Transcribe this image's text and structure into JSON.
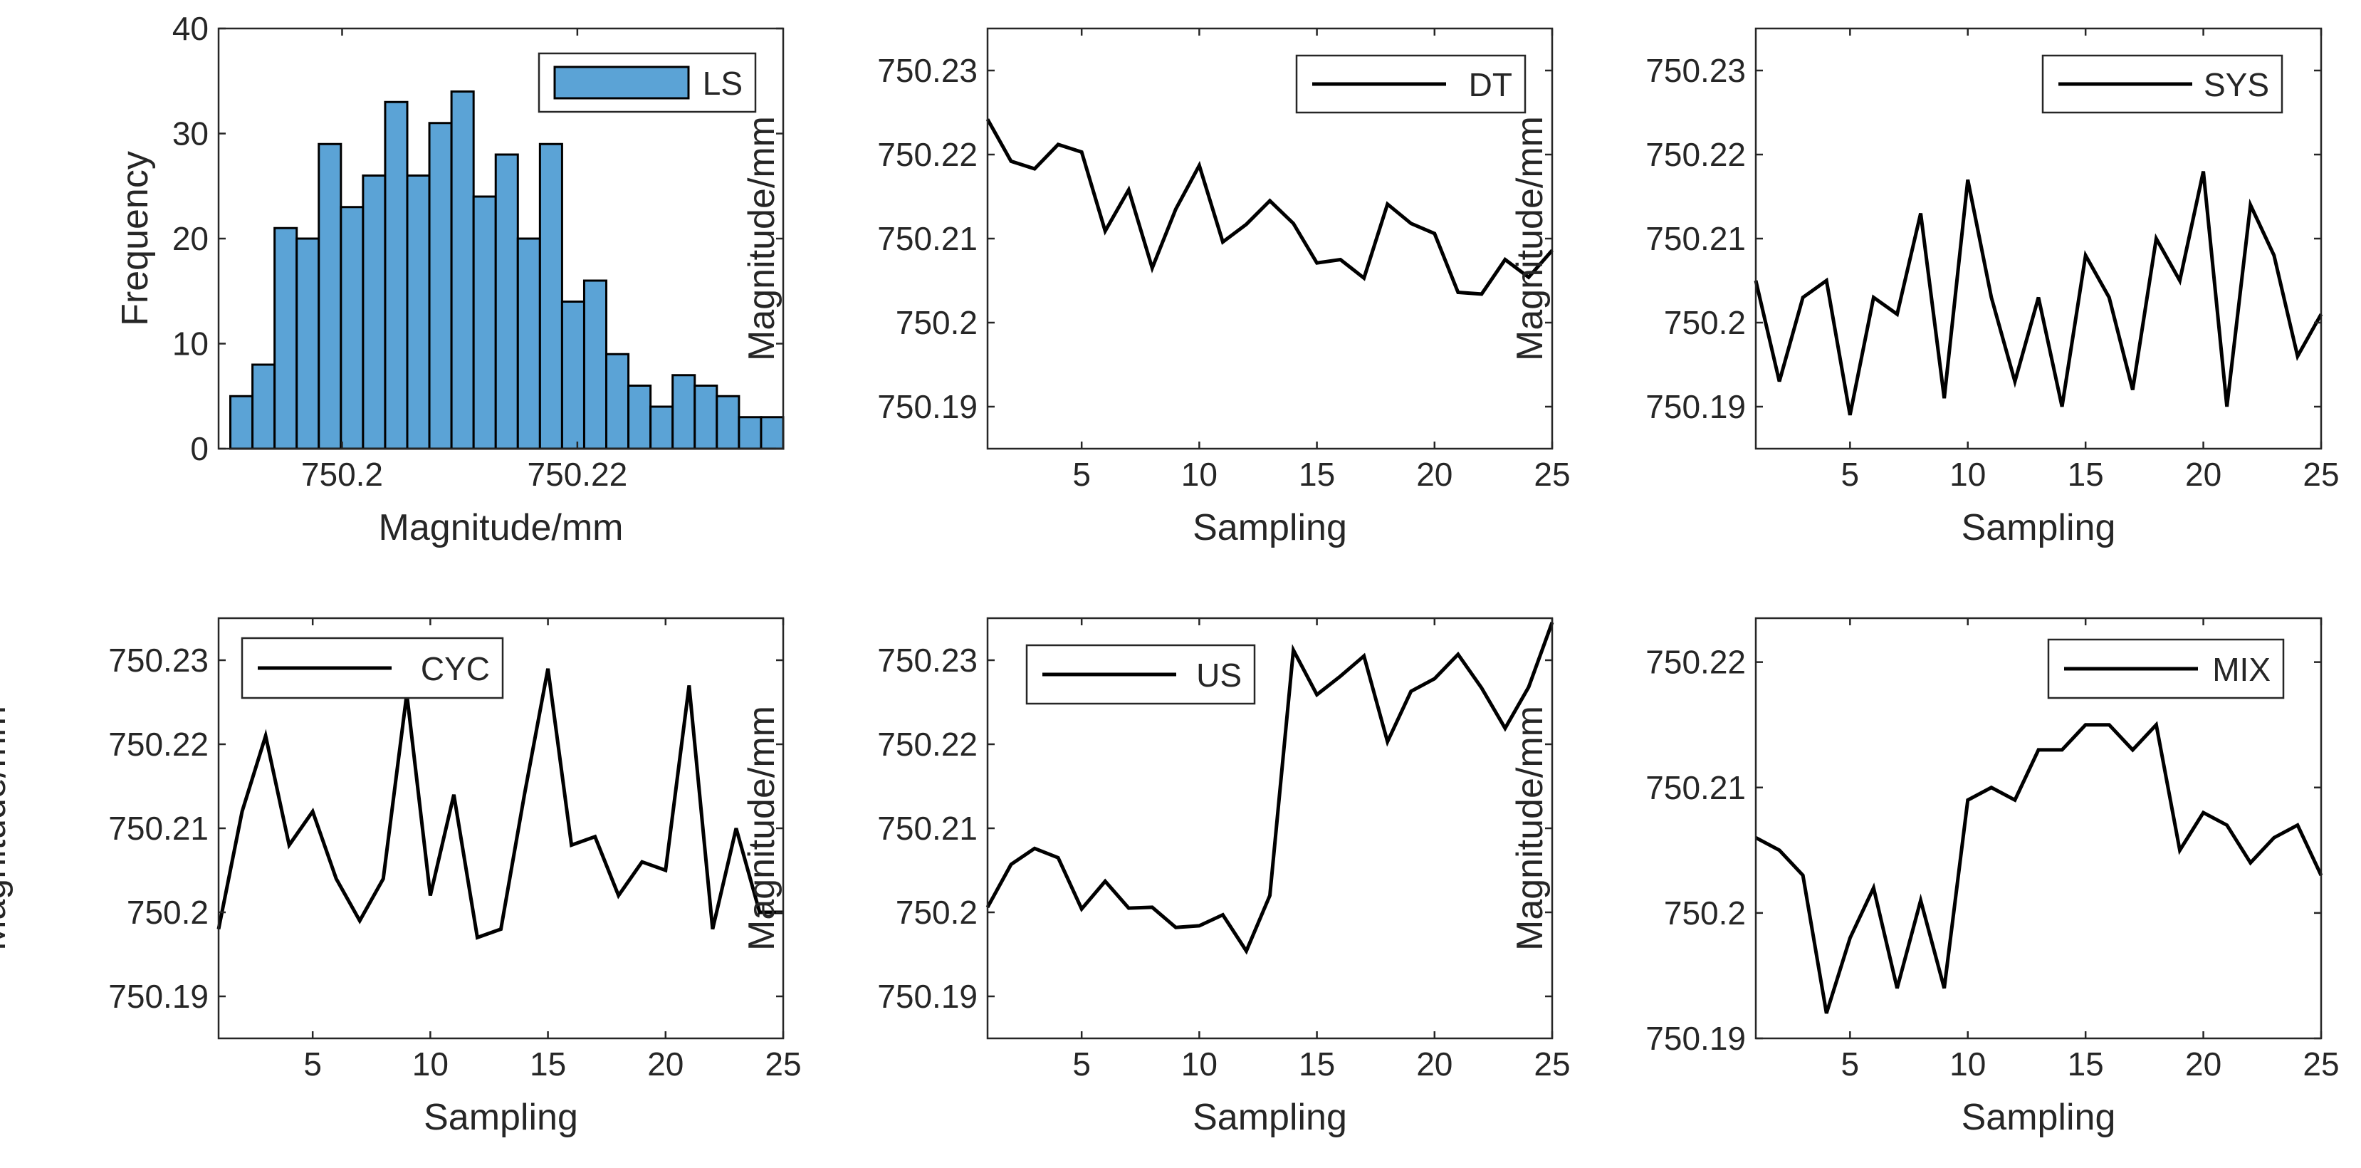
{
  "colors": {
    "bar_fill": "#5ba3d6",
    "line": "#000000",
    "axis": "#262626"
  },
  "chart_data": [
    {
      "id": "ls",
      "type": "bar",
      "legend": "LS",
      "xlabel": "Magnitude/mm",
      "ylabel": "Frequency",
      "bin_start": 750.1905,
      "bin_width": 0.00188,
      "values": [
        5,
        8,
        21,
        20,
        29,
        23,
        26,
        33,
        26,
        31,
        34,
        24,
        28,
        20,
        29,
        14,
        16,
        9,
        6,
        4,
        7,
        6,
        5,
        3,
        3
      ],
      "xlim": [
        750.1895,
        750.2375
      ],
      "ylim": [
        0,
        40
      ],
      "xticks": [
        750.2,
        750.22
      ],
      "xtick_labels": [
        "750.2",
        "750.22"
      ],
      "yticks": [
        0,
        10,
        20,
        30,
        40
      ],
      "ytick_labels": [
        "0",
        "10",
        "20",
        "30",
        "40"
      ]
    },
    {
      "id": "dt",
      "type": "line",
      "legend": "DT",
      "xlabel": "Sampling",
      "ylabel": "Magnitude/mm",
      "x": [
        1,
        2,
        3,
        4,
        5,
        6,
        7,
        8,
        9,
        10,
        11,
        12,
        13,
        14,
        15,
        16,
        17,
        18,
        19,
        20,
        21,
        22,
        23,
        24,
        25
      ],
      "values": [
        750.2242,
        750.2192,
        750.2183,
        750.2212,
        750.2203,
        750.2109,
        750.2158,
        750.2065,
        750.2135,
        750.2187,
        750.2096,
        750.2117,
        750.2145,
        750.2118,
        750.2071,
        750.2075,
        750.2053,
        750.2141,
        750.2118,
        750.2106,
        750.2036,
        750.2034,
        750.2075,
        750.2054,
        750.2086
      ],
      "xlim": [
        1,
        25
      ],
      "ylim": [
        750.185,
        750.235
      ],
      "xticks": [
        5,
        10,
        15,
        20,
        25
      ],
      "xtick_labels": [
        "5",
        "10",
        "15",
        "20",
        "25"
      ],
      "yticks": [
        750.19,
        750.2,
        750.21,
        750.22,
        750.23
      ],
      "ytick_labels": [
        "750.19",
        "750.2",
        "750.21",
        "750.22",
        "750.23"
      ]
    },
    {
      "id": "sys",
      "type": "line",
      "legend": "SYS",
      "xlabel": "Sampling",
      "ylabel": "Magnitude/mm",
      "x": [
        1,
        2,
        3,
        4,
        5,
        6,
        7,
        8,
        9,
        10,
        11,
        12,
        13,
        14,
        15,
        16,
        17,
        18,
        19,
        20,
        21,
        22,
        23,
        24,
        25
      ],
      "values": [
        750.205,
        750.193,
        750.203,
        750.205,
        750.189,
        750.203,
        750.201,
        750.213,
        750.191,
        750.217,
        750.203,
        750.193,
        750.203,
        750.19,
        750.208,
        750.203,
        750.192,
        750.21,
        750.205,
        750.218,
        750.19,
        750.214,
        750.208,
        750.196,
        750.201
      ],
      "xlim": [
        1,
        25
      ],
      "ylim": [
        750.185,
        750.235
      ],
      "xticks": [
        5,
        10,
        15,
        20,
        25
      ],
      "xtick_labels": [
        "5",
        "10",
        "15",
        "20",
        "25"
      ],
      "yticks": [
        750.19,
        750.2,
        750.21,
        750.22,
        750.23
      ],
      "ytick_labels": [
        "750.19",
        "750.2",
        "750.21",
        "750.22",
        "750.23"
      ]
    },
    {
      "id": "cyc",
      "type": "line",
      "legend": "CYC",
      "xlabel": "Sampling",
      "ylabel": "Magnitude/mm",
      "x": [
        1,
        2,
        3,
        4,
        5,
        6,
        7,
        8,
        9,
        10,
        11,
        12,
        13,
        14,
        15,
        16,
        17,
        18,
        19,
        20,
        21,
        22,
        23,
        24,
        25
      ],
      "values": [
        750.198,
        750.212,
        750.221,
        750.208,
        750.212,
        750.204,
        750.199,
        750.204,
        750.226,
        750.202,
        750.214,
        750.197,
        750.198,
        750.214,
        750.229,
        750.208,
        750.209,
        750.202,
        750.206,
        750.205,
        750.227,
        750.198,
        750.21,
        750.2,
        750.2
      ],
      "xlim": [
        1,
        25
      ],
      "ylim": [
        750.185,
        750.235
      ],
      "xticks": [
        5,
        10,
        15,
        20,
        25
      ],
      "xtick_labels": [
        "5",
        "10",
        "15",
        "20",
        "25"
      ],
      "yticks": [
        750.19,
        750.2,
        750.21,
        750.22,
        750.23
      ],
      "ytick_labels": [
        "750.19",
        "750.2",
        "750.21",
        "750.22",
        "750.23"
      ]
    },
    {
      "id": "us",
      "type": "line",
      "legend": "US",
      "xlabel": "Sampling",
      "ylabel": "Magnitude/mm",
      "x": [
        1,
        2,
        3,
        4,
        5,
        6,
        7,
        8,
        9,
        10,
        11,
        12,
        13,
        14,
        15,
        16,
        17,
        18,
        19,
        20,
        21,
        22,
        23,
        24,
        25
      ],
      "values": [
        750.2006,
        750.2057,
        750.2076,
        750.2065,
        750.2004,
        750.2037,
        750.2005,
        750.2006,
        750.1982,
        750.1984,
        750.1997,
        750.1954,
        750.202,
        750.2312,
        750.2259,
        750.2281,
        750.2305,
        750.2203,
        750.2263,
        750.2278,
        750.2307,
        750.2267,
        750.2219,
        750.2268,
        750.2345
      ],
      "xlim": [
        1,
        25
      ],
      "ylim": [
        750.185,
        750.235
      ],
      "xticks": [
        5,
        10,
        15,
        20,
        25
      ],
      "xtick_labels": [
        "5",
        "10",
        "15",
        "20",
        "25"
      ],
      "yticks": [
        750.19,
        750.2,
        750.21,
        750.22,
        750.23
      ],
      "ytick_labels": [
        "750.19",
        "750.2",
        "750.21",
        "750.22",
        "750.23"
      ]
    },
    {
      "id": "mix",
      "type": "line",
      "legend": "MIX",
      "xlabel": "Sampling",
      "ylabel": "Magnitude/mm",
      "x": [
        1,
        2,
        3,
        4,
        5,
        6,
        7,
        8,
        9,
        10,
        11,
        12,
        13,
        14,
        15,
        16,
        17,
        18,
        19,
        20,
        21,
        22,
        23,
        24,
        25
      ],
      "values": [
        750.206,
        750.205,
        750.203,
        750.192,
        750.198,
        750.202,
        750.194,
        750.201,
        750.194,
        750.209,
        750.21,
        750.209,
        750.213,
        750.213,
        750.215,
        750.215,
        750.213,
        750.215,
        750.205,
        750.208,
        750.207,
        750.204,
        750.206,
        750.207,
        750.203
      ],
      "xlim": [
        1,
        25
      ],
      "ylim": [
        750.19,
        750.2235
      ],
      "xticks": [
        5,
        10,
        15,
        20,
        25
      ],
      "xtick_labels": [
        "5",
        "10",
        "15",
        "20",
        "25"
      ],
      "yticks": [
        750.19,
        750.2,
        750.21,
        750.22
      ],
      "ytick_labels": [
        "750.19",
        "750.2",
        "750.21",
        "750.22"
      ]
    }
  ]
}
